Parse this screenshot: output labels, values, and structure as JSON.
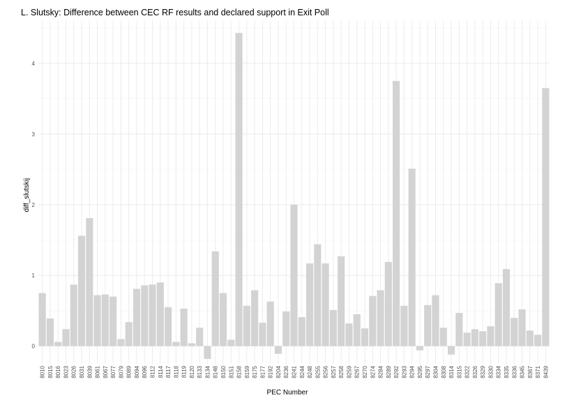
{
  "chart_data": {
    "type": "bar",
    "title": "L. Slutsky: Difference between CEC RF results and declared support in Exit Poll",
    "xlabel": "PEC Number",
    "ylabel": "diff_slutskij",
    "ylim": [
      -0.25,
      4.6
    ],
    "yticks": [
      0,
      1,
      2,
      3,
      4
    ],
    "grid": true,
    "bar_color": "#d3d3d3",
    "categories": [
      "8010",
      "8015",
      "8016",
      "8023",
      "8026",
      "8031",
      "8039",
      "8061",
      "8067",
      "8077",
      "8079",
      "8089",
      "8094",
      "8096",
      "8112",
      "8114",
      "8117",
      "8118",
      "8119",
      "8120",
      "8133",
      "8134",
      "8148",
      "8150",
      "8151",
      "8158",
      "8159",
      "8175",
      "8177",
      "8192",
      "8204",
      "8236",
      "8241",
      "8244",
      "8248",
      "8255",
      "8256",
      "8257",
      "8258",
      "8259",
      "8267",
      "8270",
      "8274",
      "8284",
      "8289",
      "8292",
      "8293",
      "8294",
      "8295",
      "8297",
      "8304",
      "8308",
      "8314",
      "8315",
      "8322",
      "8326",
      "8329",
      "8330",
      "8334",
      "8335",
      "8336",
      "8345",
      "8367",
      "8371",
      "8439"
    ],
    "values": [
      0.75,
      0.39,
      0.06,
      0.24,
      0.87,
      1.56,
      1.81,
      0.72,
      0.73,
      0.7,
      0.1,
      0.34,
      0.81,
      0.86,
      0.87,
      0.9,
      0.55,
      0.06,
      0.53,
      0.04,
      0.26,
      -0.18,
      1.34,
      0.75,
      0.09,
      4.43,
      0.57,
      0.79,
      0.33,
      0.63,
      -0.11,
      0.49,
      2.0,
      0.41,
      1.17,
      1.44,
      1.17,
      0.51,
      1.27,
      0.32,
      0.45,
      0.25,
      0.71,
      0.79,
      1.19,
      3.75,
      0.57,
      2.51,
      -0.06,
      0.58,
      0.72,
      0.26,
      -0.12,
      0.47,
      0.19,
      0.24,
      0.21,
      0.28,
      0.89,
      1.09,
      0.4,
      0.52,
      0.22,
      0.16,
      3.65
    ]
  }
}
